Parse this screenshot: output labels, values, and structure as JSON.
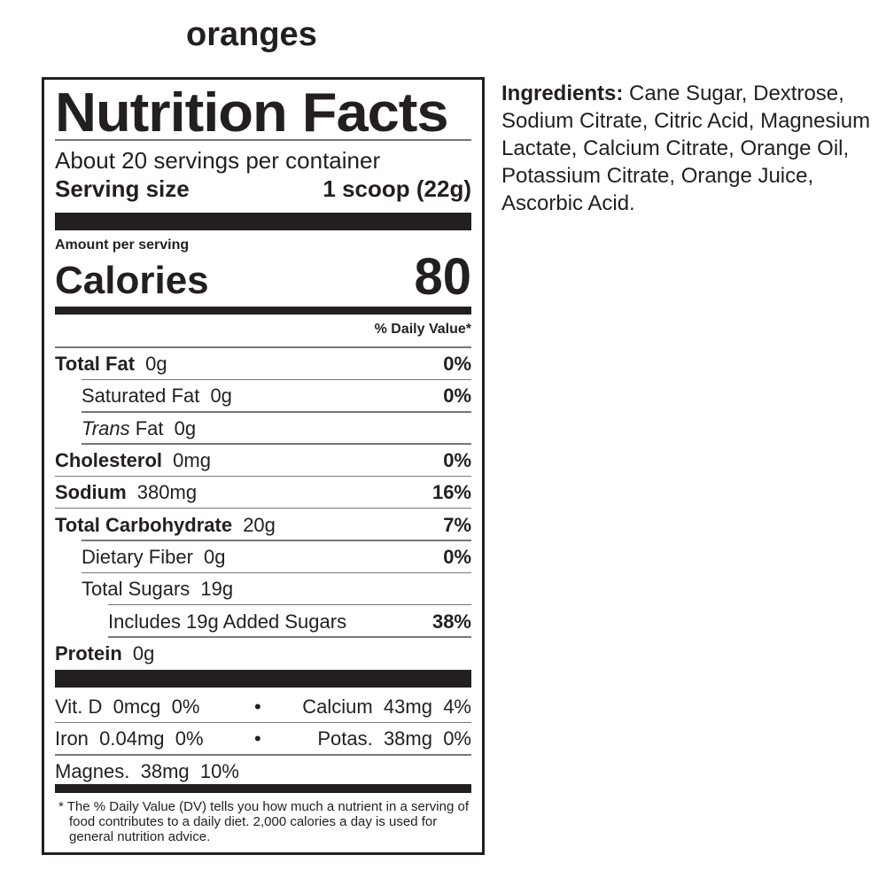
{
  "product_name": "oranges",
  "label": {
    "title": "Nutrition Facts",
    "servings_per_container": "About 20 servings per container",
    "serving_size_label": "Serving size",
    "serving_size_value": "1 scoop (22g)",
    "amount_per_serving": "Amount per serving",
    "calories_label": "Calories",
    "calories_value": "80",
    "daily_value_header": "% Daily Value*",
    "nutrients": [
      {
        "name": "Total Fat",
        "amount": "0g",
        "dv": "0%",
        "bold": true,
        "indent": 0
      },
      {
        "name": "Saturated Fat",
        "amount": "0g",
        "dv": "0%",
        "bold": false,
        "indent": 1
      },
      {
        "name": "Trans",
        "name_suffix": "Fat",
        "amount": "0g",
        "dv": "",
        "bold": false,
        "indent": 1,
        "italic_prefix": true
      },
      {
        "name": "Cholesterol",
        "amount": "0mg",
        "dv": "0%",
        "bold": true,
        "indent": 0
      },
      {
        "name": "Sodium",
        "amount": "380mg",
        "dv": "16%",
        "bold": true,
        "indent": 0
      },
      {
        "name": "Total Carbohydrate",
        "amount": "20g",
        "dv": "7%",
        "bold": true,
        "indent": 0
      },
      {
        "name": "Dietary Fiber",
        "amount": "0g",
        "dv": "0%",
        "bold": false,
        "indent": 1
      },
      {
        "name": "Total Sugars",
        "amount": "19g",
        "dv": "",
        "bold": false,
        "indent": 1
      },
      {
        "name": "Includes 19g Added Sugars",
        "amount": "",
        "dv": "38%",
        "bold": false,
        "indent": 2
      },
      {
        "name": "Protein",
        "amount": "0g",
        "dv": "",
        "bold": true,
        "indent": 0
      }
    ],
    "vitamins": [
      {
        "left": "Vit. D  0mcg  0%",
        "right": "Calcium  43mg  4%"
      },
      {
        "left": "Iron  0.04mg  0%",
        "right": "Potas.  38mg  0%"
      },
      {
        "left": "Magnes.  38mg  10%",
        "right": ""
      }
    ],
    "separator": "•",
    "footnote": "* The % Daily Value (DV) tells you how much a nutrient in a serving of food contributes to a daily diet. 2,000 calories a day is used for general nutrition advice."
  },
  "ingredients": {
    "label": "Ingredients:",
    "text": " Cane Sugar, Dextrose, Sodium Citrate, Citric Acid, Magnesium Lactate, Calcium Citrate, Orange Oil, Potassium Citrate, Orange Juice, Ascorbic Acid."
  }
}
